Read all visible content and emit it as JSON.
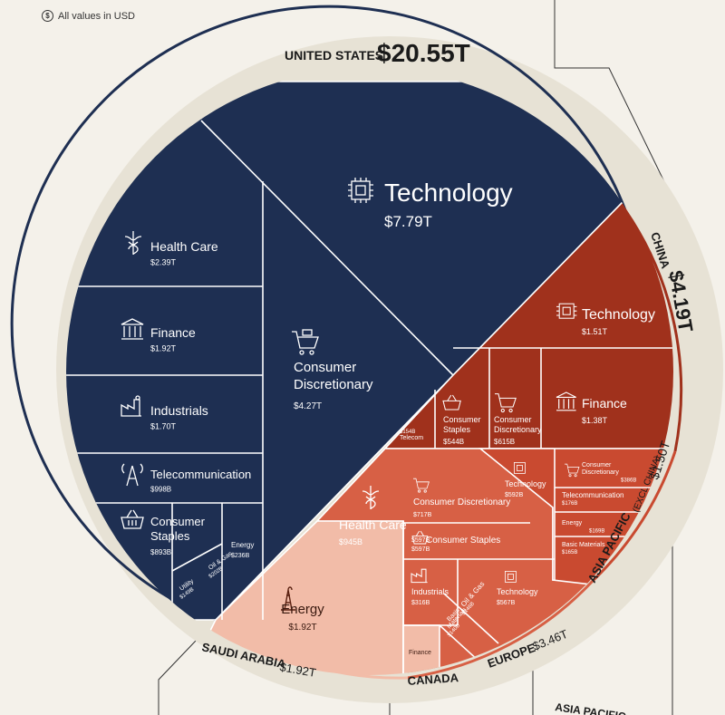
{
  "note": {
    "icon": "dollar-coin-icon",
    "text": "All values in USD"
  },
  "colors": {
    "background": "#f4f1ea",
    "ring": "#e7e2d5",
    "us": "#1e2f52",
    "china": "#a0311c",
    "saudi": "#f2bca8",
    "europe": "#d76045",
    "asia_pacific": "#c94a30",
    "divider": "#ffffff"
  },
  "chart_data": {
    "type": "treemap-pie",
    "note": "All values in USD",
    "regions": [
      {
        "name": "UNITED STATES",
        "total": "$20.55T",
        "total_t": 20.55,
        "color": "#1e2f52",
        "sectors": [
          {
            "name": "Technology",
            "value": "$7.79T",
            "icon": "chip-icon"
          },
          {
            "name": "Consumer Discretionary",
            "value": "$4.27T",
            "icon": "shopping-cart-icon"
          },
          {
            "name": "Health Care",
            "value": "$2.39T",
            "icon": "caduceus-icon"
          },
          {
            "name": "Finance",
            "value": "$1.92T",
            "icon": "bank-icon"
          },
          {
            "name": "Industrials",
            "value": "$1.70T",
            "icon": "factory-icon"
          },
          {
            "name": "Telecommunication",
            "value": "$998B",
            "icon": "antenna-tower-icon"
          },
          {
            "name": "Consumer Staples",
            "value": "$893B",
            "icon": "basket-icon"
          },
          {
            "name": "Energy",
            "value": "$236B",
            "icon": ""
          },
          {
            "name": "Oil & Gas",
            "value": "$202B",
            "icon": ""
          },
          {
            "name": "Utility",
            "value": "$149B",
            "icon": ""
          }
        ]
      },
      {
        "name": "CHINA",
        "total": "$4.19T",
        "total_t": 4.19,
        "color": "#a0311c",
        "sectors": [
          {
            "name": "Technology",
            "value": "$1.51T",
            "icon": "chip-icon"
          },
          {
            "name": "Finance",
            "value": "$1.38T",
            "icon": "bank-icon"
          },
          {
            "name": "Consumer Discretionary",
            "value": "$615B",
            "icon": "shopping-cart-icon"
          },
          {
            "name": "Consumer Staples",
            "value": "$544B",
            "icon": "basket-icon"
          },
          {
            "name": "Telecom",
            "value": "$154B",
            "icon": ""
          }
        ]
      },
      {
        "name": "ASIA PACIFIC (EXCL CHINA)",
        "total": "$1.50T",
        "total_t": 1.5,
        "color": "#c94a30",
        "sectors": [
          {
            "name": "Technology",
            "value": "$592B",
            "icon": "chip-icon"
          },
          {
            "name": "Consumer Discretionary",
            "value": "$386B",
            "icon": "shopping-cart-icon"
          },
          {
            "name": "Telecommunication",
            "value": "$176B",
            "icon": ""
          },
          {
            "name": "Energy",
            "value": "$169B",
            "icon": ""
          },
          {
            "name": "Basic Materials",
            "value": "$165B",
            "icon": ""
          }
        ]
      },
      {
        "name": "EUROPE",
        "total": "$3.46T",
        "total_t": 3.46,
        "color": "#d76045",
        "sectors": [
          {
            "name": "Health Care",
            "value": "$945B",
            "icon": "caduceus-icon"
          },
          {
            "name": "Consumer Discretionary",
            "value": "$717B",
            "icon": "shopping-cart-icon"
          },
          {
            "name": "Consumer Staples",
            "value": "$597B",
            "icon": "basket-icon"
          },
          {
            "name": "Technology",
            "value": "$567B",
            "icon": "chip-icon"
          },
          {
            "name": "Industrials",
            "value": "$316B",
            "icon": "factory-icon"
          },
          {
            "name": "Oil & Gas",
            "value": "$146B",
            "icon": ""
          },
          {
            "name": "Basic Materials",
            "value": "$140B",
            "icon": ""
          }
        ]
      },
      {
        "name": "SAUDI ARABIA",
        "total": "$1.92T",
        "total_t": 1.92,
        "color": "#f2bca8",
        "sectors": [
          {
            "name": "Energy",
            "value": "$1.92T",
            "icon": "oil-derrick-icon"
          }
        ]
      },
      {
        "name": "CANADA",
        "total": "",
        "color": "#f2bca8",
        "sectors": [
          {
            "name": "Finance",
            "value": "",
            "icon": ""
          }
        ]
      },
      {
        "name": "ASIA PACIFIC",
        "total": "",
        "color": "",
        "sectors": []
      }
    ]
  }
}
